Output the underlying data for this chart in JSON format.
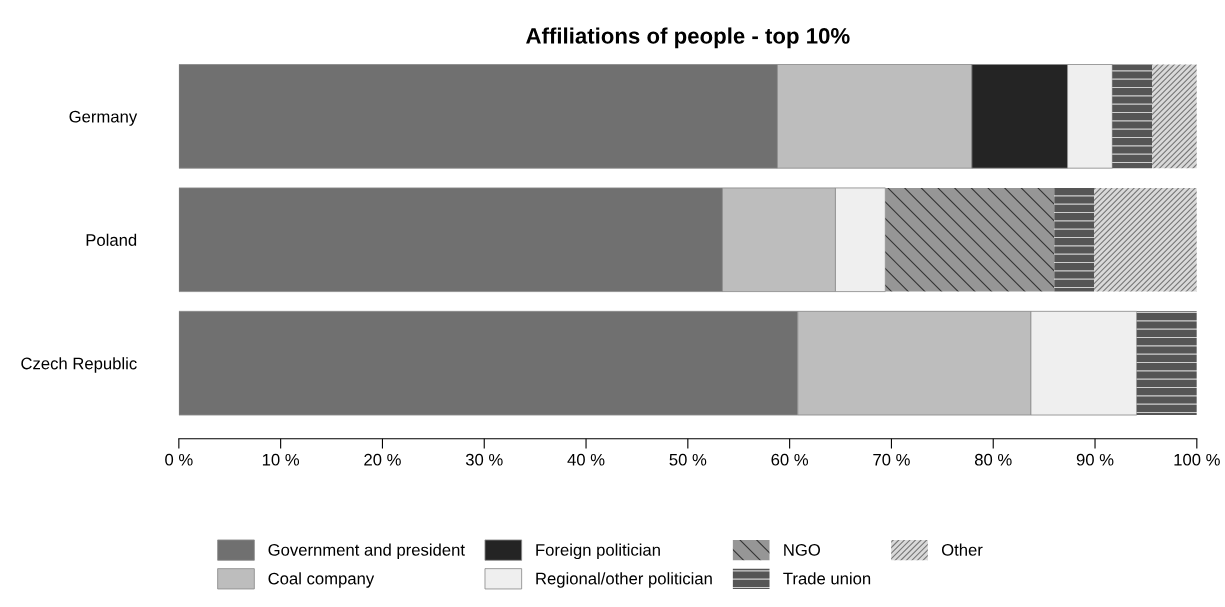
{
  "chart_data": {
    "type": "bar",
    "title": "Affiliations of people - top 10%",
    "orientation": "horizontal",
    "stacked": true,
    "categories": [
      "Germany",
      "Poland",
      "Czech Republic"
    ],
    "series": [
      {
        "name": "Government and president",
        "color": "#707070",
        "values": [
          58.8,
          53.4,
          60.8
        ]
      },
      {
        "name": "Coal company",
        "color": "#bdbdbd",
        "values": [
          19.1,
          11.1,
          22.9
        ]
      },
      {
        "name": "Foreign politician",
        "color": "#242424",
        "values": [
          9.4,
          null,
          null
        ]
      },
      {
        "name": "Regional/other politician",
        "color": "#efefef",
        "values": [
          4.4,
          4.9,
          10.4
        ]
      },
      {
        "name": "NGO",
        "color": "#969696",
        "values": [
          null,
          16.6,
          null
        ]
      },
      {
        "name": "Trade union",
        "color": "#555555",
        "values": [
          3.9,
          3.9,
          5.9
        ]
      },
      {
        "name": "Other",
        "color": "#d9d9d9",
        "values": [
          4.4,
          10.1,
          null
        ]
      }
    ],
    "xlim": [
      0,
      100
    ],
    "xticks": [
      {
        "value": 0,
        "label": "0 %"
      },
      {
        "value": 10,
        "label": "10 %"
      },
      {
        "value": 20,
        "label": "20 %"
      },
      {
        "value": 30,
        "label": "30 %"
      },
      {
        "value": 40,
        "label": "40 %"
      },
      {
        "value": 50,
        "label": "50 %"
      },
      {
        "value": 60,
        "label": "60 %"
      },
      {
        "value": 70,
        "label": "70 %"
      },
      {
        "value": 80,
        "label": "80 %"
      },
      {
        "value": 90,
        "label": "90 %"
      },
      {
        "value": 100,
        "label": "100 %"
      }
    ],
    "grid": false,
    "legend": "bottom"
  }
}
